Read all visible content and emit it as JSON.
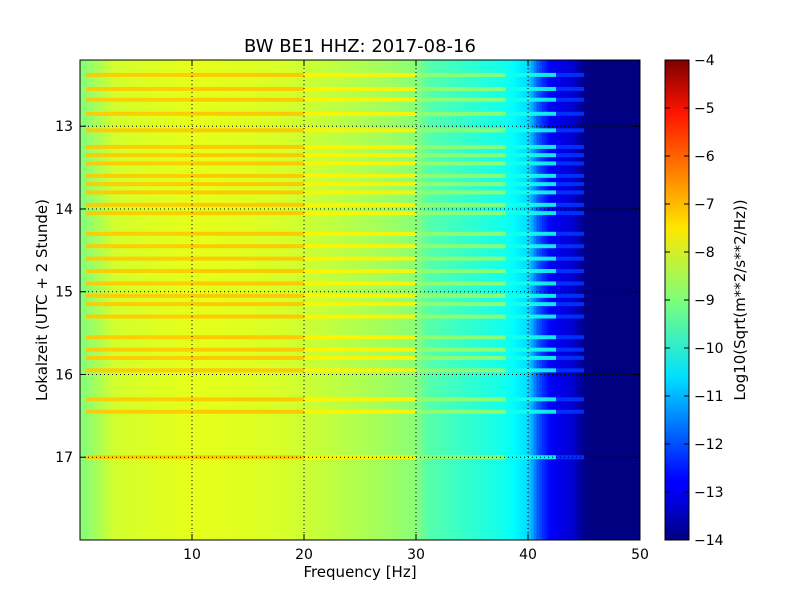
{
  "chart_data": {
    "type": "heatmap",
    "title": "BW BE1 HHZ: 2017-08-16",
    "xlabel": "Frequency [Hz]",
    "ylabel": "Lokalzeit (UTC + 2 Stunde)",
    "xlim": [
      0,
      50
    ],
    "ylim": [
      12.2,
      18.0
    ],
    "y_inverted": true,
    "x_ticks": [
      10,
      20,
      30,
      40,
      50
    ],
    "x_tick_labels": [
      "10",
      "20",
      "30",
      "40",
      "50"
    ],
    "y_ticks": [
      13,
      14,
      15,
      16,
      17
    ],
    "y_tick_labels": [
      "13",
      "14",
      "15",
      "16",
      "17"
    ],
    "grid": true,
    "colormap": "jet",
    "colorbar": {
      "label": "Log10(Sqrt(m**2/s**2/Hz))",
      "range": [
        -14,
        -4
      ],
      "ticks": [
        -4,
        -5,
        -6,
        -7,
        -8,
        -9,
        -10,
        -11,
        -12,
        -13,
        -14
      ],
      "tick_labels": [
        "−4",
        "−5",
        "−6",
        "−7",
        "−8",
        "−9",
        "−10",
        "−11",
        "−12",
        "−13",
        "−14"
      ]
    },
    "spectral_profile": {
      "frequency_hz": [
        0.5,
        3,
        6,
        10,
        14,
        18,
        22,
        26,
        30,
        31,
        34,
        38,
        40,
        41,
        42,
        44,
        45,
        46,
        50
      ],
      "log10_amplitude": [
        -8.9,
        -8.2,
        -8.1,
        -8.0,
        -8.05,
        -8.15,
        -8.35,
        -8.6,
        -8.9,
        -9.4,
        -9.7,
        -10.1,
        -10.6,
        -12.0,
        -12.8,
        -13.2,
        -13.9,
        -14.0,
        -14.0
      ]
    },
    "bright_bands_hours": [
      12.38,
      12.55,
      12.68,
      12.85,
      13.05,
      13.25,
      13.35,
      13.45,
      13.6,
      13.7,
      13.8,
      13.95,
      14.05,
      14.3,
      14.45,
      14.6,
      14.75,
      14.9,
      15.05,
      15.15,
      15.3,
      15.55,
      15.7,
      15.8,
      15.95,
      16.3,
      16.45,
      17.0
    ]
  }
}
